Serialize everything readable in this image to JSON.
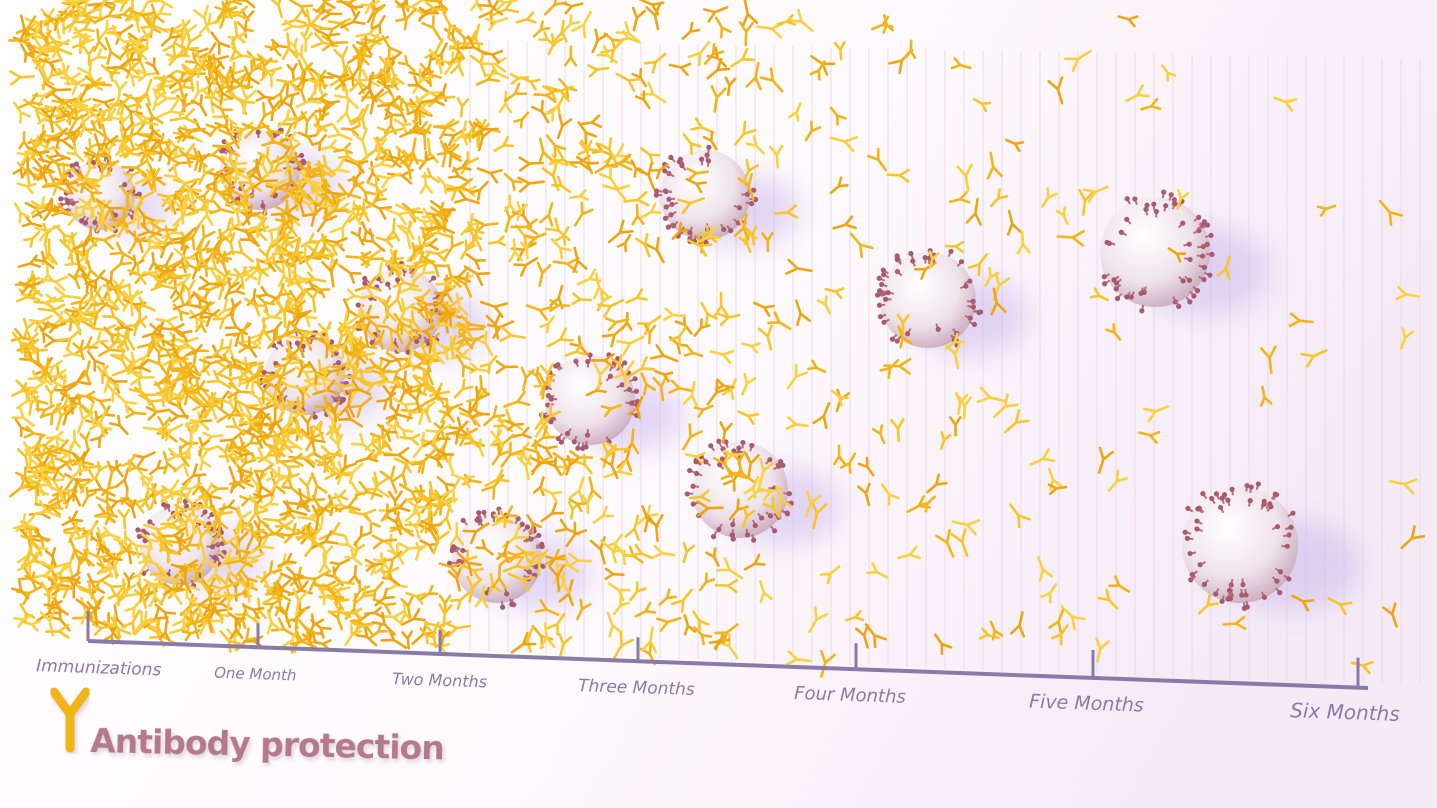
{
  "timeline": {
    "labels": [
      "Immunizations",
      "One Month",
      "Two Months",
      "Three Months",
      "Four Months",
      "Five Months",
      "Six Months"
    ]
  },
  "legend": {
    "label": "Antibody protection"
  }
}
